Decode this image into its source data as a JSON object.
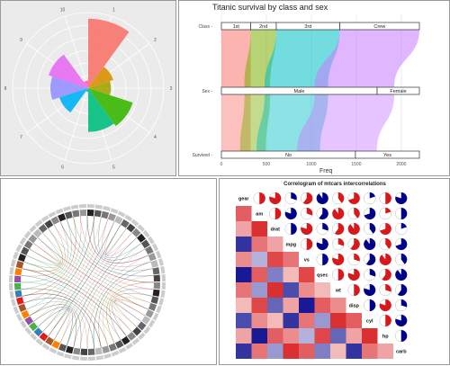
{
  "panel_colors": {
    "panel_bg": "#ebebeb",
    "grid": "#ffffff",
    "frame": "#999999"
  },
  "chart_data": [
    {
      "type": "polar-bar",
      "title": "",
      "theta_labels": [
        "1",
        "2",
        "3",
        "4",
        "5",
        "6",
        "7",
        "8",
        "9",
        "10"
      ],
      "series": [
        {
          "name": "",
          "values": [
            0.92,
            0.35,
            0.3,
            0.62,
            0.58,
            0.05,
            0.4,
            0.5,
            0.55,
            0.1
          ]
        }
      ],
      "colors": [
        "#f8766d",
        "#d89000",
        "#a3a500",
        "#39b600",
        "#00bf7d",
        "#00bfc4",
        "#00b0f6",
        "#9590ff",
        "#e76bf3",
        "#ff62bc"
      ],
      "grid": true
    },
    {
      "type": "alluvial",
      "title": "Titanic survival by class and sex",
      "xlabel": "Freq",
      "axes": [
        "Class",
        "Sex",
        "Survived"
      ],
      "strata": {
        "Class": [
          {
            "label": "1st",
            "value": 325
          },
          {
            "label": "2nd",
            "value": 285
          },
          {
            "label": "3rd",
            "value": 706
          },
          {
            "label": "Crew",
            "value": 885
          }
        ],
        "Sex": [
          {
            "label": "Male",
            "value": 1731
          },
          {
            "label": "Female",
            "value": 470
          }
        ],
        "Survived": [
          {
            "label": "No",
            "value": 1490
          },
          {
            "label": "Yes",
            "value": 711
          }
        ]
      },
      "x_ticks": [
        0,
        500,
        1000,
        1500,
        2000
      ],
      "xlim": [
        0,
        2201
      ],
      "flows": [
        {
          "class": "1st",
          "value": 325,
          "color": "#f8766d"
        },
        {
          "class": "2nd",
          "value": 285,
          "color": "#7cae00"
        },
        {
          "class": "3rd",
          "value": 706,
          "color": "#00bfc4"
        },
        {
          "class": "Crew",
          "value": 885,
          "color": "#c77cff"
        }
      ],
      "grid": true
    },
    {
      "type": "chord",
      "title": "",
      "sector_count": 60,
      "grid": false
    },
    {
      "type": "correlogram",
      "title": "Correlogram of mtcars intercorrelations",
      "variables": [
        "gear",
        "am",
        "drat",
        "mpg",
        "vs",
        "qsec",
        "wt",
        "disp",
        "cyl",
        "hp",
        "carb"
      ],
      "colors": {
        "positive": "#00008b",
        "negative": "#d7191c",
        "empty": "#ffffff"
      }
    }
  ]
}
